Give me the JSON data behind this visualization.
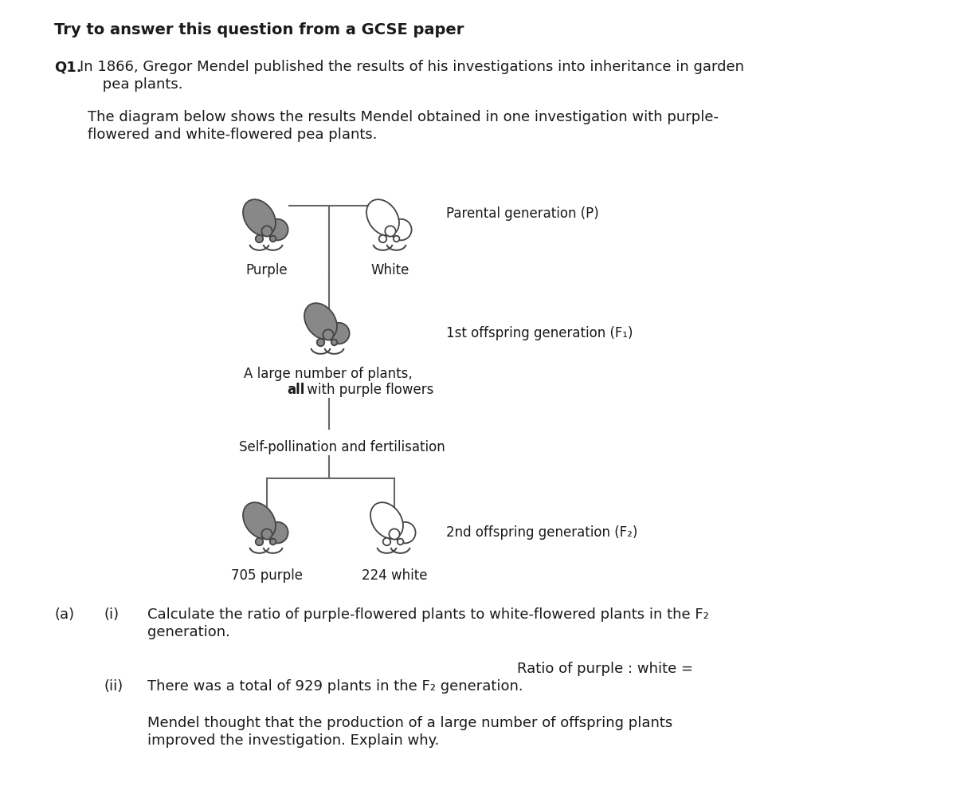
{
  "title": "Try to answer this question from a GCSE paper",
  "q1_bold": "Q1.",
  "q1_rest": "In 1866, Gregor Mendel published the results of his investigations into inheritance in garden",
  "q1_line2": "     pea plants.",
  "para2_line1": "The diagram below shows the results Mendel obtained in one investigation with purple-",
  "para2_line2": "flowered and white-flowered pea plants.",
  "parental_label": "Parental generation (P)",
  "purple_label": "Purple",
  "white_label": "White",
  "f1_label": "1st offspring generation (F₁)",
  "f1_desc1": "A large number of plants,",
  "f1_desc2": "all with purple flowers",
  "self_poll": "Self-pollination and fertilisation",
  "f2_label": "2nd offspring generation (F₂)",
  "purple_count": "705 purple",
  "white_count": "224 white",
  "q_a_label": "(a)",
  "q_i_label": "(i)",
  "q_i_text1": "Calculate the ratio of purple-flowered plants to white-flowered plants in the F₂",
  "q_i_text2": "generation.",
  "ratio_label": "Ratio of purple : white =",
  "q_ii_label": "(ii)",
  "q_ii_text": "There was a total of 929 plants in the F₂ generation.",
  "q_ii_text2a": "Mendel thought that the production of a large number of offspring plants",
  "q_ii_text2b": "improved the investigation. Explain why.",
  "bg_color": "#ffffff",
  "text_color": "#1a1a1a",
  "line_color": "#666666",
  "plant_dark": "#888888",
  "plant_outline": "#999999",
  "plant_edge": "#444444"
}
